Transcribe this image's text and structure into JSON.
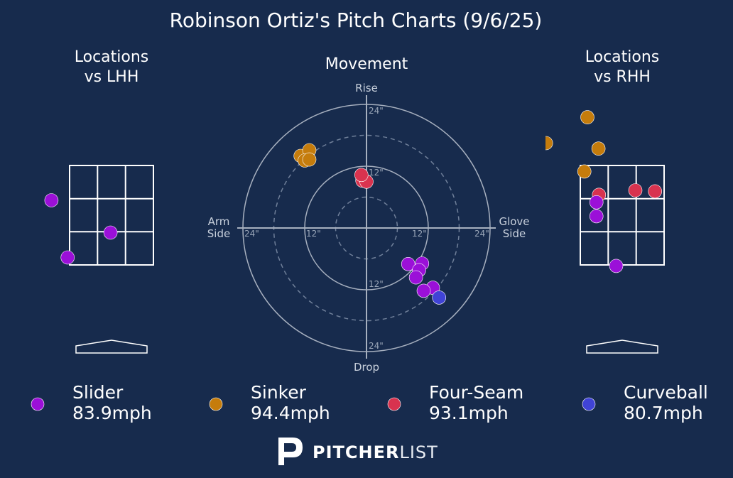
{
  "title": "Robinson Ortiz's Pitch Charts (9/6/25)",
  "panels": {
    "lhh_title_line1": "Locations",
    "lhh_title_line2": "vs LHH",
    "movement_title": "Movement",
    "rhh_title_line1": "Locations",
    "rhh_title_line2": "vs RHH"
  },
  "movement_labels": {
    "rise": "Rise",
    "drop": "Drop",
    "arm_side_line1": "Arm",
    "arm_side_line2": "Side",
    "glove_side_line1": "Glove",
    "glove_side_line2": "Side",
    "ring_inner": "12\"",
    "ring_outer": "24\""
  },
  "legend": [
    {
      "pitch": "Slider",
      "speed": "83.9mph",
      "color": "#9b10d8"
    },
    {
      "pitch": "Sinker",
      "speed": "94.4mph",
      "color": "#c57c0c"
    },
    {
      "pitch": "Four-Seam",
      "speed": "93.1mph",
      "color": "#d8334f"
    },
    {
      "pitch": "Curveball",
      "speed": "80.7mph",
      "color": "#4043d6"
    }
  ],
  "brand": {
    "bold": "PITCHER",
    "light": "LIST"
  },
  "chart_data": [
    {
      "type": "scatter",
      "name": "Locations vs LHH",
      "units": "feet from plate center (x), feet above ground (y), catcher view",
      "xlim": [
        -1.5,
        1.5
      ],
      "ylim": [
        0.2,
        5.0
      ],
      "strike_zone": {
        "x": [
          -0.83,
          0.83
        ],
        "y": [
          1.5,
          3.5
        ]
      },
      "points": [
        {
          "pitch": "Slider",
          "x": -1.19,
          "y": 2.8
        },
        {
          "pitch": "Slider",
          "x": -0.02,
          "y": 2.15
        },
        {
          "pitch": "Slider",
          "x": -0.87,
          "y": 1.65
        }
      ]
    },
    {
      "type": "scatter",
      "name": "Movement",
      "units": "inches of movement (x: arm side negative, glove side positive; y: rise positive)",
      "rings": [
        6,
        12,
        18,
        24
      ],
      "xlim": [
        -24,
        24
      ],
      "ylim": [
        -24,
        24
      ],
      "points": [
        {
          "pitch": "Sinker",
          "x": -12.8,
          "y": 14.0
        },
        {
          "pitch": "Sinker",
          "x": -11.1,
          "y": 15.1
        },
        {
          "pitch": "Sinker",
          "x": -12.0,
          "y": 13.1
        },
        {
          "pitch": "Sinker",
          "x": -11.1,
          "y": 13.3
        },
        {
          "pitch": "Four-Seam",
          "x": -0.8,
          "y": 9.2
        },
        {
          "pitch": "Four-Seam",
          "x": 0.0,
          "y": 9.0
        },
        {
          "pitch": "Four-Seam",
          "x": -1.0,
          "y": 10.3
        },
        {
          "pitch": "Slider",
          "x": 8.1,
          "y": -7.0
        },
        {
          "pitch": "Slider",
          "x": 10.8,
          "y": -6.9
        },
        {
          "pitch": "Slider",
          "x": 10.2,
          "y": -8.2
        },
        {
          "pitch": "Slider",
          "x": 9.6,
          "y": -9.6
        },
        {
          "pitch": "Slider",
          "x": 12.9,
          "y": -11.6
        },
        {
          "pitch": "Slider",
          "x": 11.1,
          "y": -12.2
        },
        {
          "pitch": "Curveball",
          "x": 14.1,
          "y": -13.5
        }
      ]
    },
    {
      "type": "scatter",
      "name": "Locations vs RHH",
      "units": "feet from plate center (x), feet above ground (y), catcher view",
      "xlim": [
        -1.5,
        1.5
      ],
      "ylim": [
        0.2,
        5.0
      ],
      "strike_zone": {
        "x": [
          -0.83,
          0.83
        ],
        "y": [
          1.5,
          3.5
        ]
      },
      "points": [
        {
          "pitch": "Sinker",
          "x": -0.69,
          "y": 4.47
        },
        {
          "pitch": "Sinker",
          "x": -1.51,
          "y": 3.95
        },
        {
          "pitch": "Sinker",
          "x": -0.47,
          "y": 3.84
        },
        {
          "pitch": "Sinker",
          "x": -0.75,
          "y": 3.38
        },
        {
          "pitch": "Four-Seam",
          "x": 0.26,
          "y": 3.0
        },
        {
          "pitch": "Four-Seam",
          "x": 0.65,
          "y": 2.98
        },
        {
          "pitch": "Four-Seam",
          "x": -0.46,
          "y": 2.91
        },
        {
          "pitch": "Slider",
          "x": -0.51,
          "y": 2.76
        },
        {
          "pitch": "Slider",
          "x": -0.51,
          "y": 2.48
        },
        {
          "pitch": "Slider",
          "x": -0.12,
          "y": 1.48
        }
      ]
    }
  ]
}
